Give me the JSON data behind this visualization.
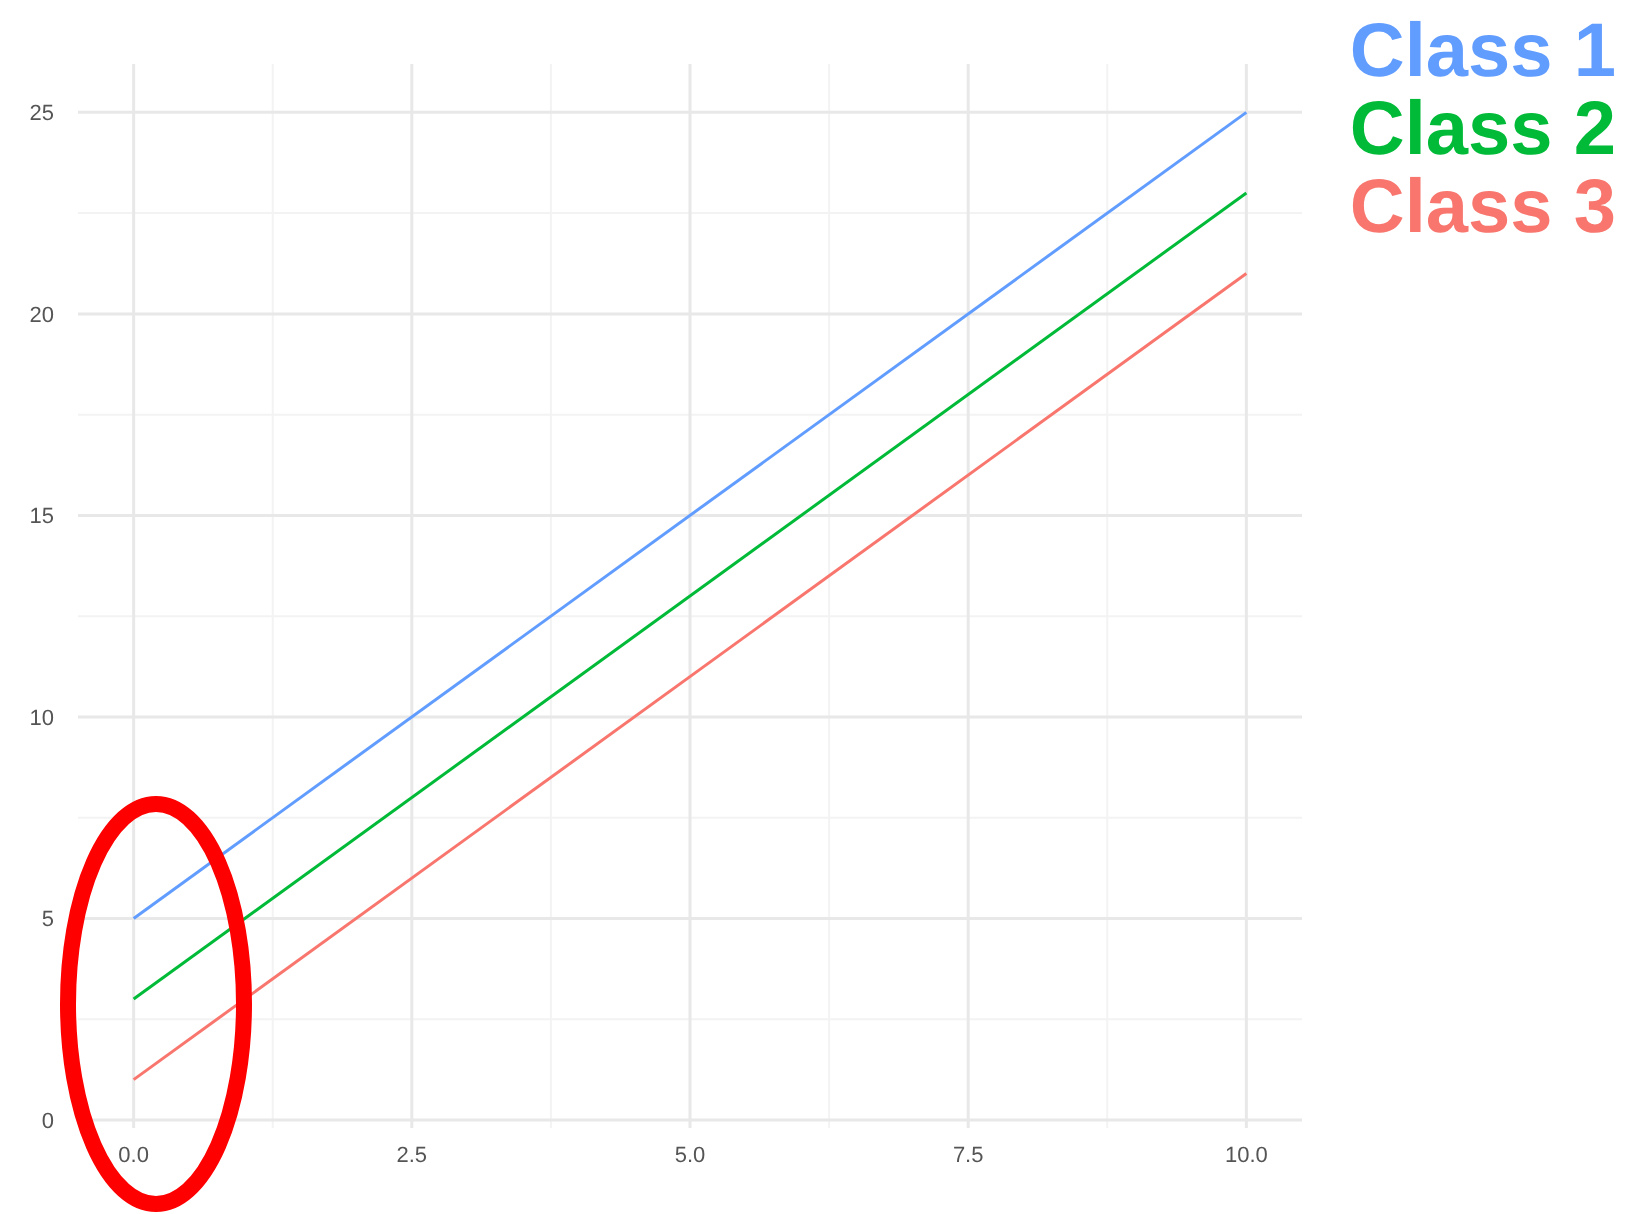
{
  "chart_data": {
    "type": "line",
    "x": [
      0,
      10
    ],
    "series": [
      {
        "name": "Class 1",
        "color": "#619cff",
        "values": [
          5,
          25
        ]
      },
      {
        "name": "Class 2",
        "color": "#00ba38",
        "values": [
          3,
          23
        ]
      },
      {
        "name": "Class 3",
        "color": "#f8766d",
        "values": [
          1,
          21
        ]
      }
    ],
    "xlim": [
      -0.5,
      10.5
    ],
    "xticks": [
      {
        "value": 0,
        "label": "0.0"
      },
      {
        "value": 2.5,
        "label": "2.5"
      },
      {
        "value": 5,
        "label": "5.0"
      },
      {
        "value": 7.5,
        "label": "7.5"
      },
      {
        "value": 10,
        "label": "10.0"
      }
    ],
    "ylim": [
      -0.2,
      26.2
    ],
    "yticks": [
      0,
      5,
      10,
      15,
      20,
      25
    ],
    "grid": true,
    "legend": "top right",
    "marker": "none",
    "line_style": "solid"
  }
}
